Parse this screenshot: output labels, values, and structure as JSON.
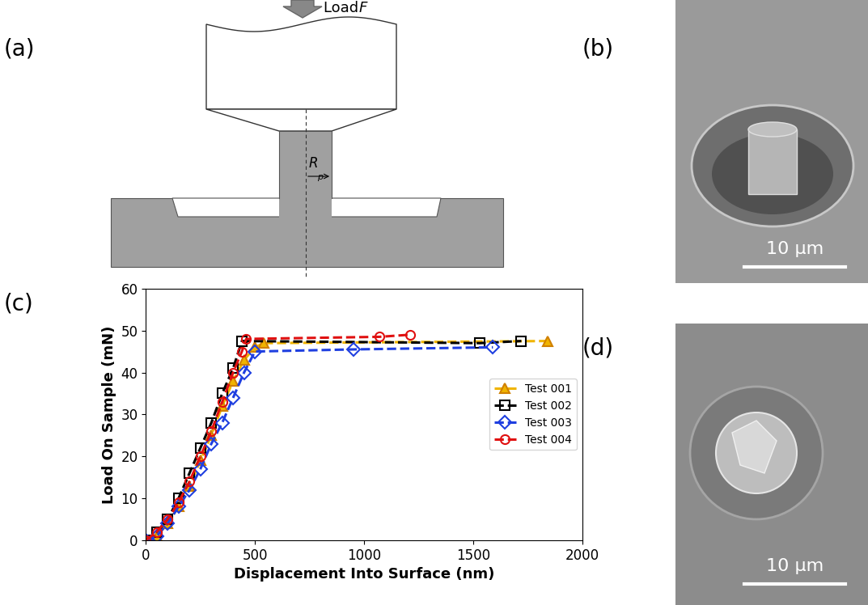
{
  "panel_labels": [
    "(a)",
    "(b)",
    "(c)",
    "(d)"
  ],
  "diagram": {
    "load_label": "Load",
    "load_symbol": "F",
    "radius_label": "R",
    "radius_subscript": "p"
  },
  "images": [
    {
      "panel": "(b)",
      "scale_bar": "10 µm"
    },
    {
      "panel": "(d)",
      "scale_bar": "10 µm"
    }
  ],
  "chart_data": {
    "type": "line",
    "xlabel": "Displacement Into Surface (nm)",
    "ylabel": "Load On Sample (mN)",
    "xlim": [
      0,
      2000
    ],
    "xticks": [
      0,
      500,
      1000,
      1500,
      2000
    ],
    "ylim": [
      0,
      60
    ],
    "yticks": [
      0,
      10,
      20,
      30,
      40,
      50,
      60
    ],
    "legend": "center right",
    "series": [
      {
        "name": "Test 001",
        "color": "#f0b400",
        "marker": "triangle",
        "line_style": "dashed",
        "x": [
          0,
          50,
          100,
          150,
          200,
          250,
          300,
          350,
          400,
          450,
          500,
          540,
          1840
        ],
        "values": [
          0,
          1,
          4,
          8,
          13,
          19,
          25,
          32,
          38,
          43,
          46,
          47,
          47.5
        ]
      },
      {
        "name": "Test 002",
        "color": "#000000",
        "marker": "square",
        "line_style": "dashed",
        "x": [
          0,
          50,
          100,
          150,
          200,
          250,
          300,
          350,
          400,
          440,
          1530,
          1720
        ],
        "values": [
          0,
          2,
          5,
          10,
          16,
          22,
          28,
          35,
          41,
          47.5,
          47,
          47.5
        ]
      },
      {
        "name": "Test 003",
        "color": "#1f3fe0",
        "marker": "diamond",
        "line_style": "dashed",
        "x": [
          0,
          50,
          100,
          150,
          200,
          250,
          300,
          350,
          400,
          450,
          500,
          950,
          1590
        ],
        "values": [
          0,
          1,
          4,
          8,
          12,
          17,
          23,
          28,
          34,
          40,
          45,
          45.5,
          46
        ]
      },
      {
        "name": "Test 004",
        "color": "#e01010",
        "marker": "circle",
        "line_style": "dashed",
        "x": [
          0,
          50,
          100,
          150,
          200,
          250,
          300,
          350,
          400,
          440,
          460,
          1070,
          1210
        ],
        "values": [
          0,
          2,
          5,
          9,
          14,
          20,
          26,
          33,
          40,
          45,
          48,
          48.5,
          49
        ]
      }
    ]
  }
}
